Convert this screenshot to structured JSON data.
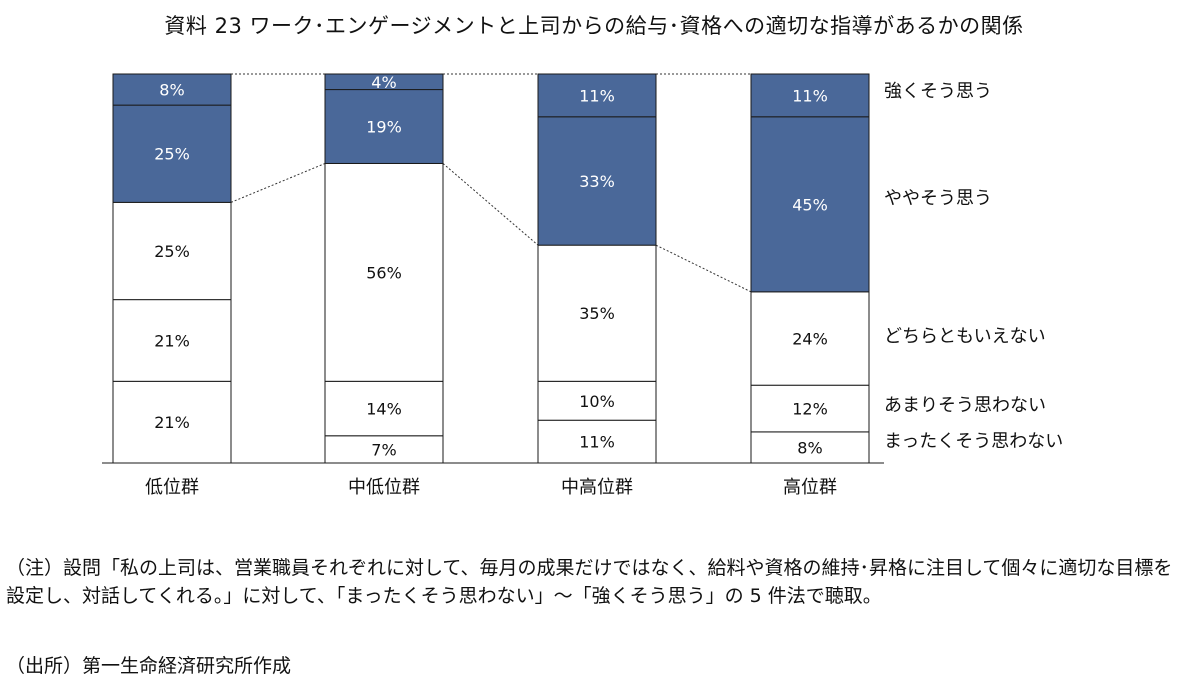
{
  "title": "資料 23 ワーク･エンゲージメントと上司からの給与･資格への適切な指導があるかの関係",
  "note": "（注）設問「私の上司は、営業職員それぞれに対して、毎月の成果だけではなく、給料や資格の維持･昇格に注目して個々に適切な目標を設定し、対話してくれる。」に対して、「まったくそう思わない」～「強くそう思う」の 5 件法で聴取。",
  "source": "（出所）第一生命経済研究所作成",
  "colors": {
    "positive": "#4a6899",
    "neutral": "#ffffff",
    "border": "#1a1a1a"
  },
  "chart_data": {
    "type": "bar",
    "stacked": true,
    "categories": [
      "低位群",
      "中低位群",
      "中高位群",
      "高位群"
    ],
    "series": [
      {
        "name": "まったくそう思わない",
        "values": [
          21,
          7,
          11,
          8
        ],
        "labels": [
          "21%",
          "7%",
          "11%",
          "8%"
        ]
      },
      {
        "name": "あまりそう思わない",
        "values": [
          21,
          14,
          10,
          12
        ],
        "labels": [
          "21%",
          "14%",
          "10%",
          "12%"
        ]
      },
      {
        "name": "どちらともいえない",
        "values": [
          25,
          56,
          35,
          24
        ],
        "labels": [
          "25%",
          "56%",
          "35%",
          "24%"
        ]
      },
      {
        "name": "ややそう思う",
        "values": [
          25,
          19,
          33,
          45
        ],
        "labels": [
          "25%",
          "19%",
          "33%",
          "45%"
        ]
      },
      {
        "name": "強くそう思う",
        "values": [
          8,
          4,
          11,
          11
        ],
        "labels": [
          "8%",
          "4%",
          "11%",
          "11%"
        ]
      }
    ],
    "ylim": [
      0,
      100
    ],
    "legend_position": "right",
    "grid": false
  }
}
